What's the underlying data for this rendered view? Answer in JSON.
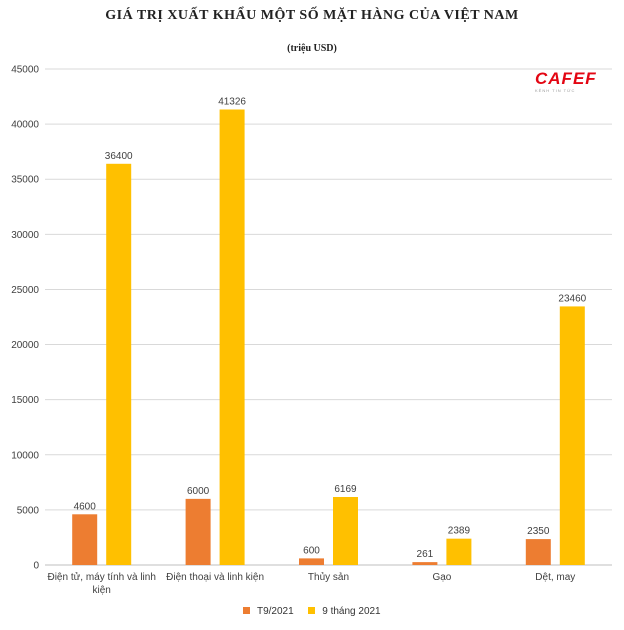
{
  "title": "GIÁ TRỊ XUẤT KHẨU MỘT SỐ MẶT HÀNG CỦA VIỆT NAM",
  "subtitle": "(triệu USD)",
  "logo": {
    "text": "CAFEF",
    "tagline": "KÊNH TIN TỨC"
  },
  "colors": {
    "t9_2021": "#ed7d31",
    "nine_months_2021": "#ffc000",
    "grid": "#d9d9d9",
    "axis_text": "#404040"
  },
  "chart_data": {
    "type": "bar",
    "title": "GIÁ TRỊ XUẤT KHẨU MỘT SỐ MẶT HÀNG CỦA VIỆT NAM",
    "subtitle": "(triệu USD)",
    "categories": [
      [
        "Điện tử, máy tính và linh",
        "kiện"
      ],
      [
        "Điện thoại và linh kiện"
      ],
      [
        "Thủy sản"
      ],
      [
        "Gạo"
      ],
      [
        "Dệt, may"
      ]
    ],
    "series": [
      {
        "name": "T9/2021",
        "values": [
          4600,
          6000,
          600,
          261,
          2350
        ],
        "color": "#ed7d31"
      },
      {
        "name": "9 tháng 2021",
        "values": [
          36400,
          41326,
          6169,
          2389,
          23460
        ],
        "color": "#ffc000"
      }
    ],
    "ylim": [
      0,
      45000
    ],
    "yticks": [
      0,
      5000,
      10000,
      15000,
      20000,
      25000,
      30000,
      35000,
      40000,
      45000
    ],
    "grid": true,
    "legend": "bottom",
    "data_labels": true
  }
}
